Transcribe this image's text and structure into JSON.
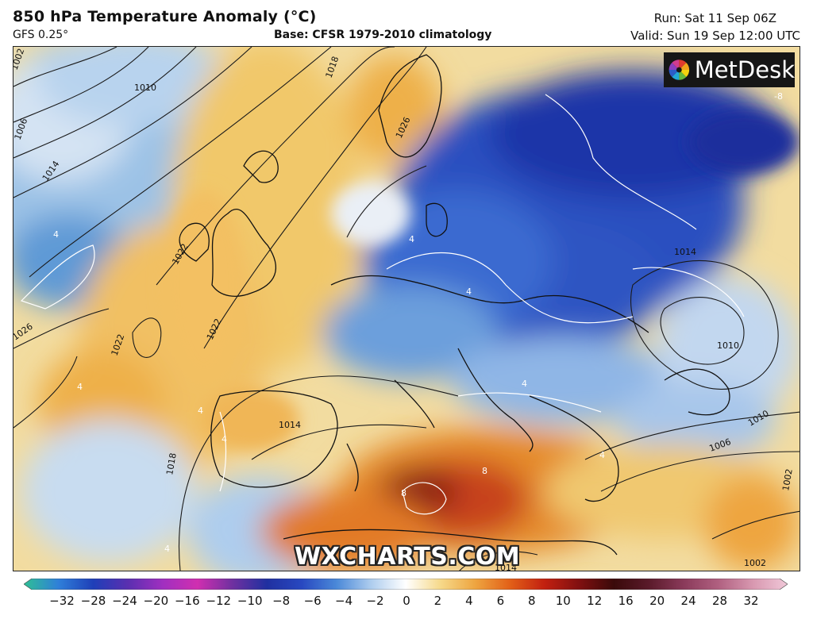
{
  "header": {
    "title": "850 hPa Temperature Anomaly (°C)",
    "model": "GFS 0.25°",
    "base": "Base: CFSR 1979-2010 climatology",
    "run": "Run: Sat 11 Sep 06Z",
    "valid": "Valid: Sun 19 Sep 12:00 UTC"
  },
  "logo": {
    "text": "MetDesk"
  },
  "watermark": "WXCHARTS.COM",
  "colorbar": {
    "ticks": [
      "−32",
      "−28",
      "−24",
      "−20",
      "−16",
      "−12",
      "−10",
      "−8",
      "−6",
      "−4",
      "−2",
      "0",
      "2",
      "4",
      "6",
      "8",
      "10",
      "12",
      "16",
      "20",
      "24",
      "28",
      "32"
    ],
    "colors": [
      "#2fbf95",
      "#2f7fd9",
      "#1f3fb8",
      "#5a2fb0",
      "#a02fc0",
      "#d02fb0",
      "#7030a0",
      "#2030a0",
      "#2848c0",
      "#4a88d8",
      "#aecdee",
      "#ffffff",
      "#f6d98a",
      "#eea540",
      "#e26018",
      "#c22010",
      "#801010",
      "#3a0a0a",
      "#5a1a2a",
      "#8a3a5a",
      "#b06080",
      "#d898b0",
      "#f0c8d8"
    ]
  },
  "isobar_labels": [
    "1002",
    "1010",
    "1006",
    "1014",
    "1018",
    "1022",
    "1026",
    "1022",
    "1022",
    "1018",
    "1014",
    "1026",
    "1014",
    "1010",
    "1006",
    "1010",
    "1002",
    "1014",
    "1002"
  ],
  "anomaly_labels": [
    "4",
    "4",
    "4",
    "4",
    "4",
    "4",
    "8",
    "8",
    "-8",
    "4",
    "4",
    "4"
  ]
}
